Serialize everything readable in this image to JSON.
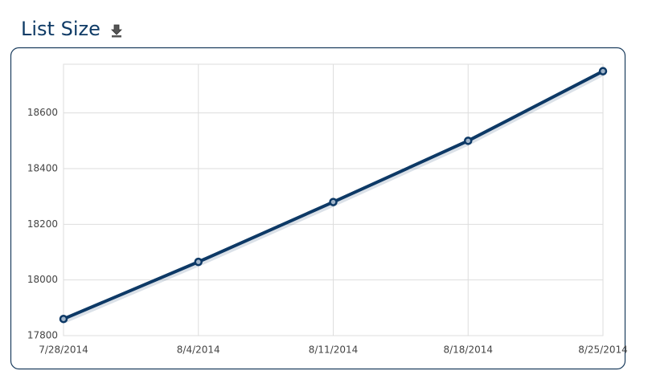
{
  "chart_data": {
    "type": "line",
    "title": "List Size",
    "categories": [
      "7/28/2014",
      "8/4/2014",
      "8/11/2014",
      "8/18/2014",
      "8/25/2014"
    ],
    "series": [
      {
        "name": "List Size",
        "color": "#0d3966",
        "values": [
          17860,
          18065,
          18280,
          18500,
          18750
        ]
      }
    ],
    "ylim": [
      17800,
      18775
    ],
    "yticks": [
      17800,
      18000,
      18200,
      18400,
      18600
    ],
    "grid": true
  }
}
